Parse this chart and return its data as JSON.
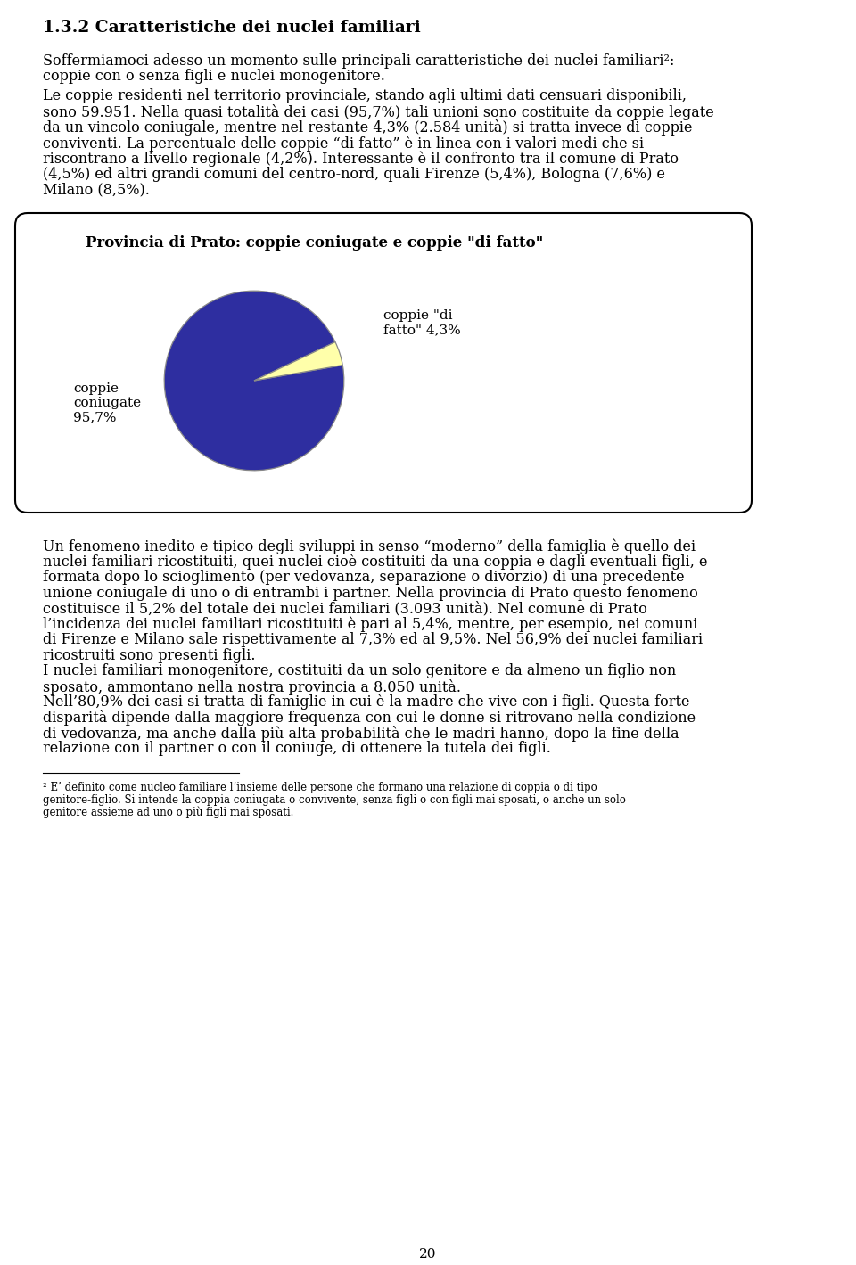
{
  "title_heading": "1.3.2 Caratteristiche dei nuclei familiari",
  "para1_line1": "Soffermiamoci adesso un momento sulle principali caratteristiche dei nuclei familiari²:",
  "para1_line2": "coppie con o senza figli e nuclei monogenitore.",
  "para2_line1": "Le coppie residenti nel territorio provinciale, stando agli ultimi dati censuari disponibili,",
  "para2_line2": "sono 59.951. Nella quasi totalità dei casi (95,7%) tali unioni sono costituite da coppie legate",
  "para2_line3": "da un vincolo coniugale, mentre nel restante 4,3% (2.584 unità) si tratta invece di coppie",
  "para2_line4": "conviventi. La percentuale delle coppie “di fatto” è in linea con i valori medi che si",
  "para2_line5": "riscontrano a livello regionale (4,2%). Interessante è il confronto tra il comune di Prato",
  "para2_line6": "(4,5%) ed altri grandi comuni del centro-nord, quali Firenze (5,4%), Bologna (7,6%) e",
  "para2_line7": "Milano (8,5%).",
  "chart_title": "Provincia di Prato: coppie coniugate e coppie \"di fatto\"",
  "label_left_line1": "coppie",
  "label_left_line2": "coniugate",
  "label_left_line3": "95,7%",
  "label_right_line1": "coppie \"di",
  "label_right_line2": "fatto\" 4,3%",
  "slice1_value": 95.7,
  "slice2_value": 4.3,
  "slice1_color": "#2E2EA0",
  "slice2_color": "#FFFFAA",
  "para3_lines": [
    "Un fenomeno inedito e tipico degli sviluppi in senso “moderno” della famiglia è quello dei",
    "nuclei familiari ricostituiti, quei nuclei cioè costituiti da una coppia e dagli eventuali figli, e",
    "formata dopo lo scioglimento (per vedovanza, separazione o divorzio) di una precedente",
    "unione coniugale di uno o di entrambi i partner. Nella provincia di Prato questo fenomeno",
    "costituisce il 5,2% del totale dei nuclei familiari (3.093 unità). Nel comune di Prato",
    "l’incidenza dei nuclei familiari ricostituiti è pari al 5,4%, mentre, per esempio, nei comuni",
    "di Firenze e Milano sale rispettivamente al 7,3% ed al 9,5%. Nel 56,9% dei nuclei familiari",
    "ricostruiti sono presenti figli.",
    "I nuclei familiari monogenitore, costituiti da un solo genitore e da almeno un figlio non",
    "sposato, ammontano nella nostra provincia a 8.050 unità.",
    "Nell’80,9% dei casi si tratta di famiglie in cui è la madre che vive con i figli. Questa forte",
    "disparità dipende dalla maggiore frequenza con cui le donne si ritrovano nella condizione",
    "di vedovanza, ma anche dalla più alta probabilità che le madri hanno, dopo la fine della",
    "relazione con il partner o con il coniuge, di ottenere la tutela dei figli."
  ],
  "footnote_lines": [
    "² E’ definito come nucleo familiare l’insieme delle persone che formano una relazione di coppia o di tipo",
    "genitore-figlio. Si intende la coppia coniugata o convivente, senza figli o con figli mai sposati, o anche un solo",
    "genitore assieme ad uno o più figli mai sposati."
  ],
  "page_number": "20",
  "bg_color": "#FFFFFF",
  "text_color": "#000000",
  "chart_box_edge": "#000000",
  "chart_box_fill": "#FFFFFF"
}
